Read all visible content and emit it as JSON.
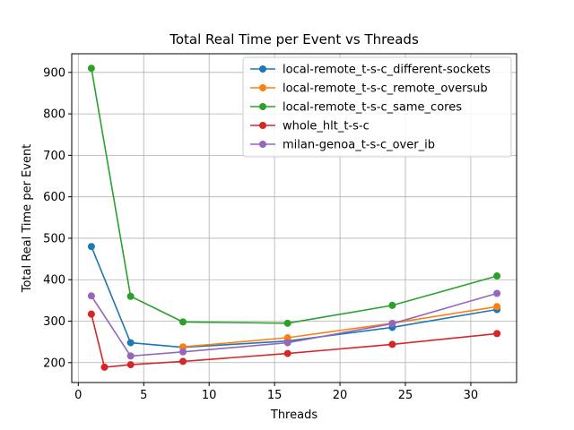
{
  "chart_data": {
    "type": "line",
    "title": "Total Real Time per Event vs Threads",
    "xlabel": "Threads",
    "ylabel": "Total Real Time per Event",
    "xlim": [
      -0.5,
      33.5
    ],
    "ylim": [
      152,
      945
    ],
    "xticks": [
      0,
      5,
      10,
      15,
      20,
      25,
      30
    ],
    "yticks": [
      200,
      300,
      400,
      500,
      600,
      700,
      800,
      900
    ],
    "grid": true,
    "legend_position": "top-right",
    "series": [
      {
        "name": "local-remote_t-s-c_different-sockets",
        "color": "#1f77b4",
        "x": [
          1,
          4,
          8,
          16,
          24,
          32
        ],
        "y": [
          480,
          248,
          237,
          252,
          285,
          328
        ]
      },
      {
        "name": "local-remote_t-s-c_remote_oversub",
        "color": "#ff7f0e",
        "x": [
          8,
          16,
          24,
          32
        ],
        "y": [
          238,
          260,
          295,
          335
        ]
      },
      {
        "name": "local-remote_t-s-c_same_cores",
        "color": "#2ca02c",
        "x": [
          1,
          4,
          8,
          16,
          24,
          32
        ],
        "y": [
          910,
          360,
          298,
          295,
          338,
          409
        ]
      },
      {
        "name": "whole_hlt_t-s-c",
        "color": "#d62728",
        "x": [
          1,
          2,
          4,
          8,
          16,
          24,
          32
        ],
        "y": [
          317,
          189,
          195,
          203,
          222,
          244,
          270
        ]
      },
      {
        "name": "milan-genoa_t-s-c_over_ib",
        "color": "#9467bd",
        "x": [
          1,
          4,
          8,
          16,
          24,
          32
        ],
        "y": [
          361,
          216,
          226,
          248,
          294,
          367
        ]
      }
    ]
  }
}
